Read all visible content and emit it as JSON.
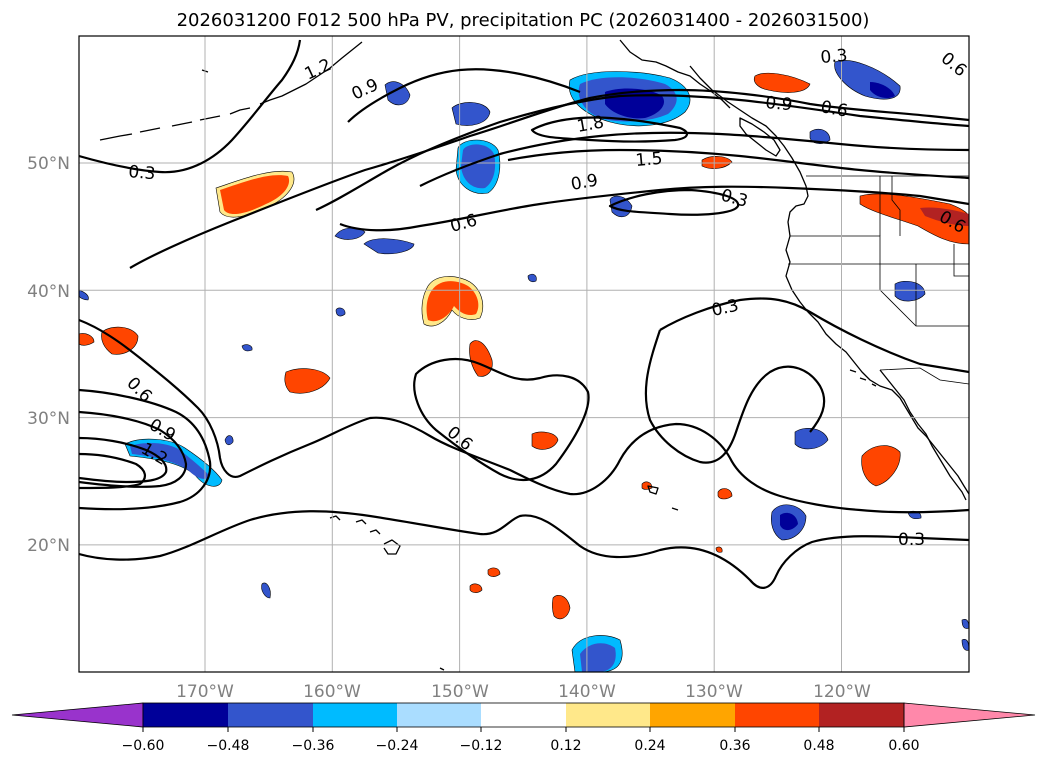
{
  "title": "2026031200 F012 500 hPa PV, precipitation PC (2026031400 - 2026031500)",
  "lat_labels": [
    {
      "text": "50°N",
      "lat": 50
    },
    {
      "text": "40°N",
      "lat": 40
    },
    {
      "text": "30°N",
      "lat": 30
    },
    {
      "text": "20°N",
      "lat": 20
    }
  ],
  "lon_labels": [
    {
      "text": "170°W",
      "lon": -170
    },
    {
      "text": "160°W",
      "lon": -160
    },
    {
      "text": "150°W",
      "lon": -150
    },
    {
      "text": "140°W",
      "lon": -140
    },
    {
      "text": "130°W",
      "lon": -130
    },
    {
      "text": "120°W",
      "lon": -120
    }
  ],
  "contour_labels": [
    "1.2",
    "0.9",
    "0.3",
    "0.6",
    "0.9",
    "0.6",
    "1.8",
    "1.5",
    "0.9",
    "0.3",
    "0.3",
    "0.6",
    "0.3",
    "0.6",
    "0.9",
    "1.2",
    "0.6",
    "0.3",
    "0.6"
  ],
  "colorbar": {
    "colors": [
      "#9933cc",
      "#000099",
      "#3355cc",
      "#00bbff",
      "#aaddff",
      "#ffffff",
      "#ffe88a",
      "#ffa500",
      "#ff4500",
      "#b22222",
      "#ff88aa"
    ],
    "ticks": [
      "−0.60",
      "−0.48",
      "−0.36",
      "−0.24",
      "−0.12",
      "0.12",
      "0.24",
      "0.36",
      "0.48",
      "0.60"
    ]
  }
}
